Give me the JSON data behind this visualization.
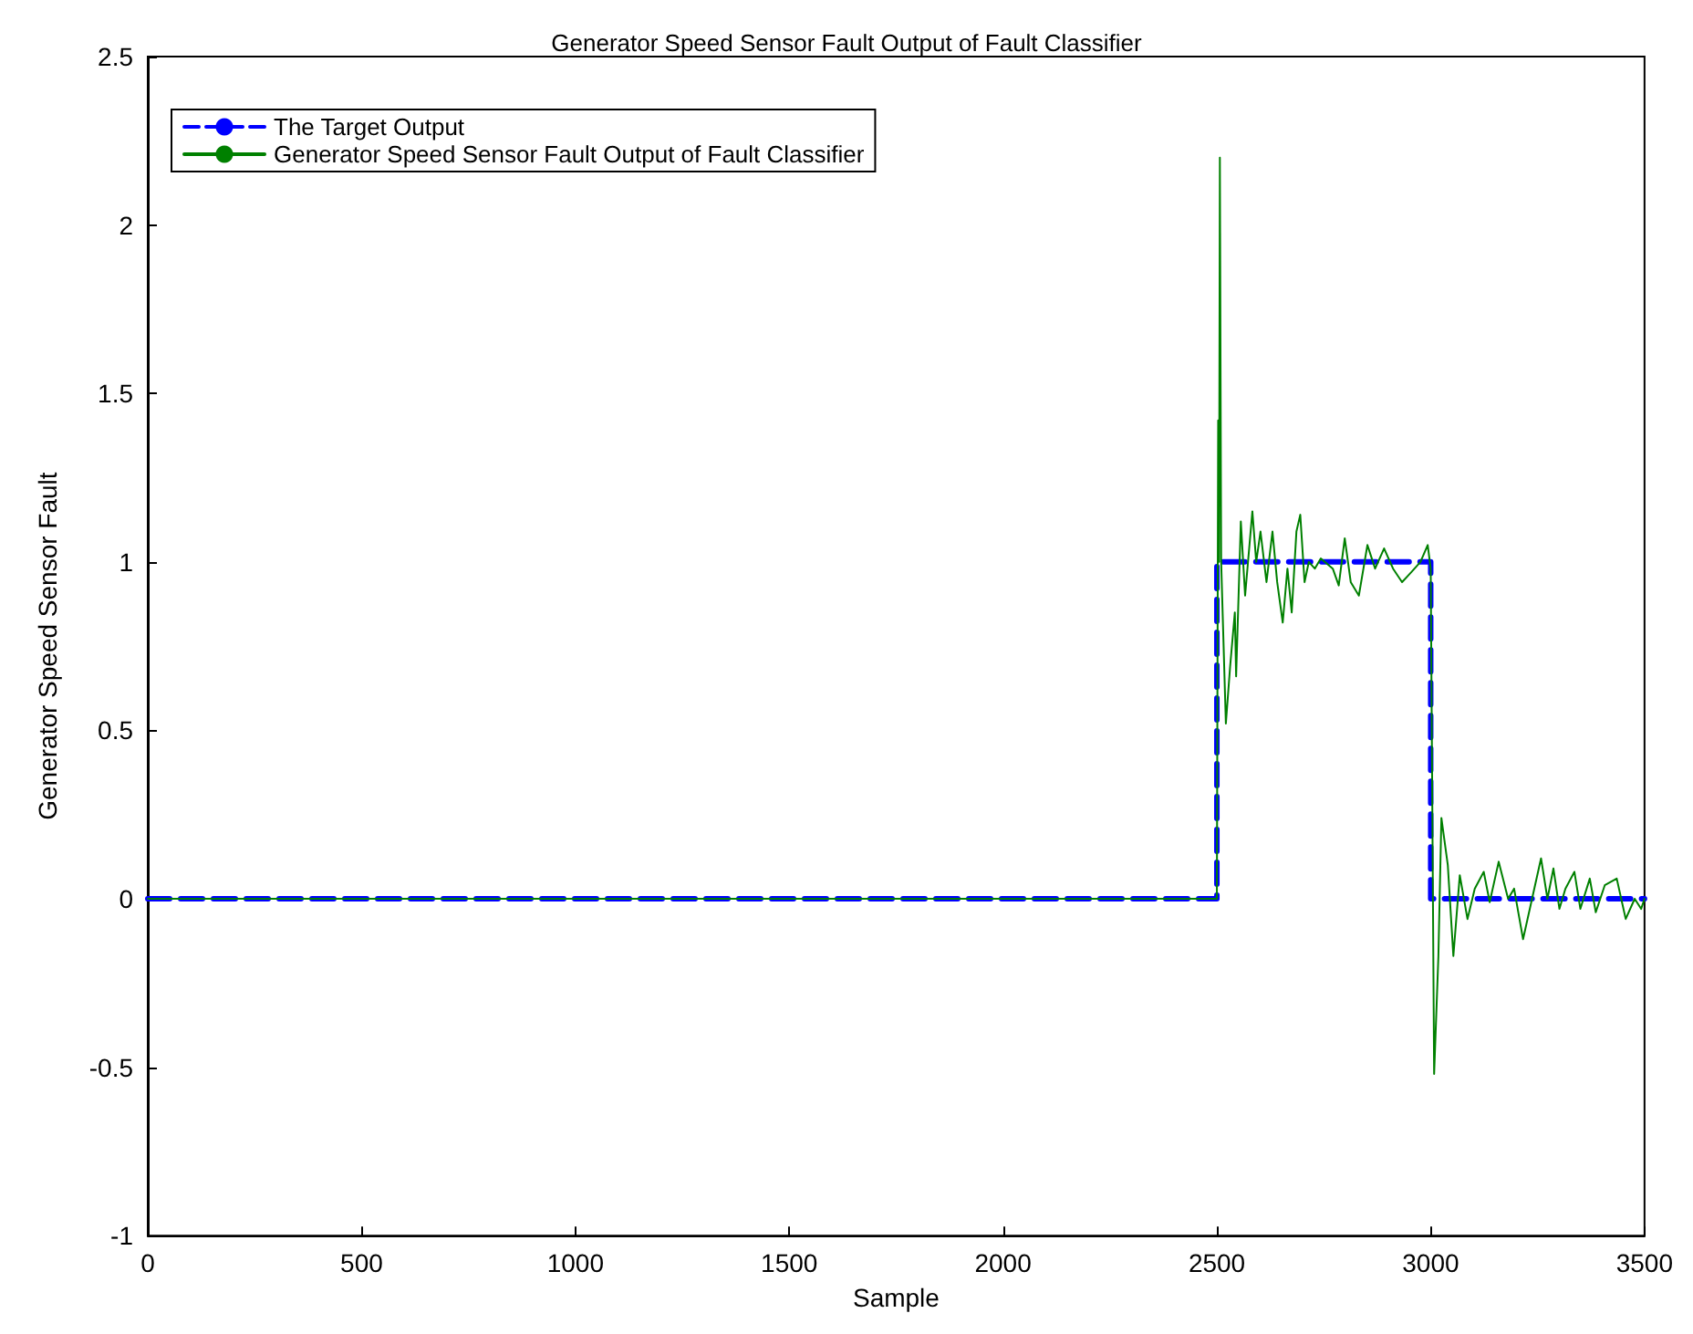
{
  "chart_data": {
    "type": "line",
    "title": "Generator Speed Sensor Fault Output of Fault Classifier",
    "xlabel": "Sample",
    "ylabel": "Generator Speed Sensor Fault",
    "xlim": [
      0,
      3500
    ],
    "xticks": [
      0,
      500,
      1000,
      1500,
      2000,
      2500,
      3000,
      3500
    ],
    "ylim": [
      -1,
      2.5
    ],
    "yticks": [
      -1,
      -0.5,
      0,
      0.5,
      1,
      1.5,
      2,
      2.5
    ],
    "grid": false,
    "legend": "top left",
    "marker": "none",
    "series": [
      {
        "name": "The Target Output",
        "color": "#0000ff",
        "line_style": "dashed",
        "x": [
          0,
          2500,
          2500,
          3000,
          3000,
          3500
        ],
        "values": [
          0,
          0,
          1,
          1,
          0,
          0
        ]
      },
      {
        "name": "Generator Speed Sensor Fault Output of Fault Classifier",
        "color": "#008000",
        "line_style": "solid",
        "x": [
          0,
          2500,
          2503,
          2505,
          2507,
          2510,
          2521,
          2531,
          2542,
          2545,
          2556,
          2566,
          2583,
          2592,
          2602,
          2616,
          2630,
          2641,
          2654,
          2665,
          2675,
          2686,
          2695,
          2705,
          2715,
          2729,
          2743,
          2771,
          2785,
          2799,
          2813,
          2832,
          2852,
          2870,
          2891,
          2912,
          2933,
          2955,
          2976,
          2993,
          3000,
          3008,
          3018,
          3025,
          3040,
          3053,
          3068,
          3086,
          3103,
          3124,
          3138,
          3159,
          3181,
          3195,
          3216,
          3237,
          3258,
          3273,
          3287,
          3301,
          3315,
          3336,
          3350,
          3372,
          3386,
          3407,
          3435,
          3456,
          3477,
          3492,
          3500
        ],
        "values": [
          0,
          0,
          1.42,
          1.0,
          2.2,
          1.0,
          0.52,
          0.69,
          0.85,
          0.66,
          1.12,
          0.9,
          1.15,
          1.0,
          1.09,
          0.94,
          1.09,
          0.94,
          0.82,
          0.98,
          0.85,
          1.09,
          1.14,
          0.94,
          1.0,
          0.98,
          1.01,
          0.98,
          0.93,
          1.07,
          0.94,
          0.9,
          1.05,
          0.98,
          1.04,
          0.98,
          0.94,
          0.97,
          1.0,
          1.05,
          0.98,
          -0.52,
          -0.17,
          0.24,
          0.1,
          -0.17,
          0.07,
          -0.06,
          0.03,
          0.08,
          -0.01,
          0.11,
          0,
          0.03,
          -0.12,
          0,
          0.12,
          0,
          0.09,
          -0.03,
          0.03,
          0.08,
          -0.03,
          0.06,
          -0.04,
          0.04,
          0.06,
          -0.06,
          0,
          -0.03,
          0
        ]
      }
    ]
  }
}
